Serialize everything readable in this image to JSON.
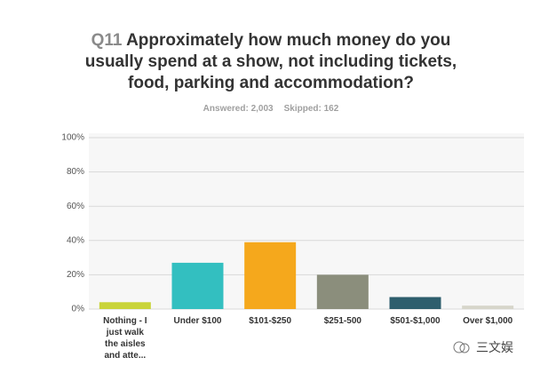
{
  "question_number": "Q11",
  "chart_data": {
    "type": "bar",
    "title": "Approximately how much money do you usually spend at a show, not including tickets, food, parking and accommodation?",
    "answered": "Answered: 2,003",
    "skipped": "Skipped: 162",
    "categories": [
      "Nothing - I just walk the aisles and atte...",
      "Under $100",
      "$101-$250",
      "$251-500",
      "$501-$1,000",
      "Over $1,000"
    ],
    "values": [
      4,
      27,
      39,
      20,
      7,
      2
    ],
    "colors": [
      "#c9d43a",
      "#33bfc0",
      "#f5a81c",
      "#8b8e7c",
      "#2e5e6d",
      "#d7d6cb"
    ],
    "ylim": [
      0,
      100
    ],
    "yticks": [
      {
        "value": 0,
        "label": "0%"
      },
      {
        "value": 20,
        "label": "20%"
      },
      {
        "value": 40,
        "label": "40%"
      },
      {
        "value": 60,
        "label": "60%"
      },
      {
        "value": 80,
        "label": "80%"
      },
      {
        "value": 100,
        "label": "100%"
      }
    ],
    "grid": true
  },
  "watermark": "三文娱"
}
